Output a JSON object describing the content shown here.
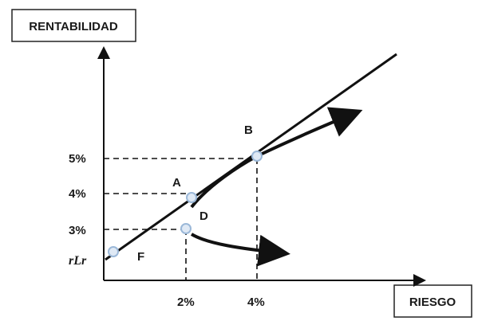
{
  "axes": {
    "y_title": "RENTABILIDAD",
    "x_title": "RIESGO"
  },
  "y_ticks": [
    "5%",
    "4%",
    "3%",
    "rLr"
  ],
  "x_ticks": [
    "2%",
    "4%"
  ],
  "points": {
    "A": "A",
    "B": "B",
    "D": "D",
    "F": "F"
  },
  "colors": {
    "ink": "#111111",
    "marker": "#9bb8d8",
    "marker_fill": "#dfe9f5"
  }
}
